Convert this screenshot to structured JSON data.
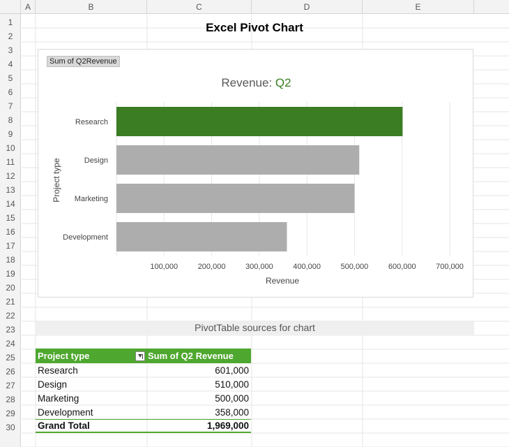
{
  "columns": [
    "A",
    "B",
    "C",
    "D",
    "E"
  ],
  "rows": [
    "1",
    "2",
    "3",
    "4",
    "5",
    "6",
    "7",
    "8",
    "9",
    "10",
    "11",
    "12",
    "13",
    "14",
    "15",
    "16",
    "17",
    "18",
    "19",
    "20",
    "21",
    "22",
    "23",
    "24",
    "25",
    "26",
    "27",
    "28",
    "29",
    "30"
  ],
  "sheet_title": "Excel Pivot Chart",
  "chart": {
    "field_button": "Sum of Q2Revenue",
    "title_prefix": "Revenue: ",
    "title_accent": "Q2",
    "accent_color": "#3a7d22",
    "bar_color": "#adadad"
  },
  "chart_data": {
    "type": "bar",
    "orientation": "horizontal",
    "title": "Revenue: Q2",
    "categories": [
      "Research",
      "Design",
      "Marketing",
      "Development"
    ],
    "values": [
      601000,
      510000,
      500000,
      358000
    ],
    "highlighted_category": "Research",
    "xlabel": "Revenue",
    "ylabel": "Project type",
    "x_ticks": [
      "100,000",
      "200,000",
      "300,000",
      "400,000",
      "500,000",
      "600,000",
      "700,000"
    ],
    "xlim": [
      0,
      700000
    ],
    "grid": true
  },
  "banner": "PivotTable sources for chart",
  "pivot": {
    "header_col1": "Project type",
    "header_col2": "Sum of Q2 Revenue",
    "rows": [
      {
        "label": "Research",
        "value": "601,000"
      },
      {
        "label": "Design",
        "value": "510,000"
      },
      {
        "label": "Marketing",
        "value": "500,000"
      },
      {
        "label": "Development",
        "value": "358,000"
      }
    ],
    "total_label": "Grand Total",
    "total_value": "1,969,000"
  }
}
